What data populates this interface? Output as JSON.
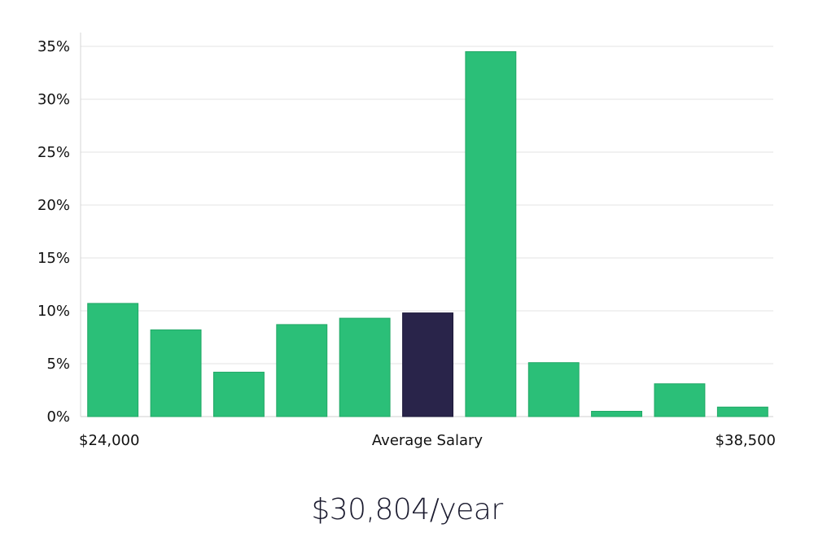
{
  "chart_data": {
    "type": "bar",
    "y_ticks": [
      "0%",
      "5%",
      "10%",
      "15%",
      "20%",
      "25%",
      "30%",
      "35%"
    ],
    "ylim": [
      0,
      35
    ],
    "values": [
      10.7,
      8.2,
      4.2,
      8.7,
      9.3,
      9.8,
      34.5,
      5.1,
      0.5,
      3.1,
      0.9
    ],
    "highlight_index": 5,
    "x_labels": {
      "min": "$24,000",
      "center": "Average Salary",
      "max": "$38,500"
    },
    "colors": {
      "bar": "#2bbf78",
      "highlight": "#29244a",
      "grid": "#e3e3e3"
    },
    "grid": true
  },
  "summary": {
    "salary": "$30,804/year"
  }
}
